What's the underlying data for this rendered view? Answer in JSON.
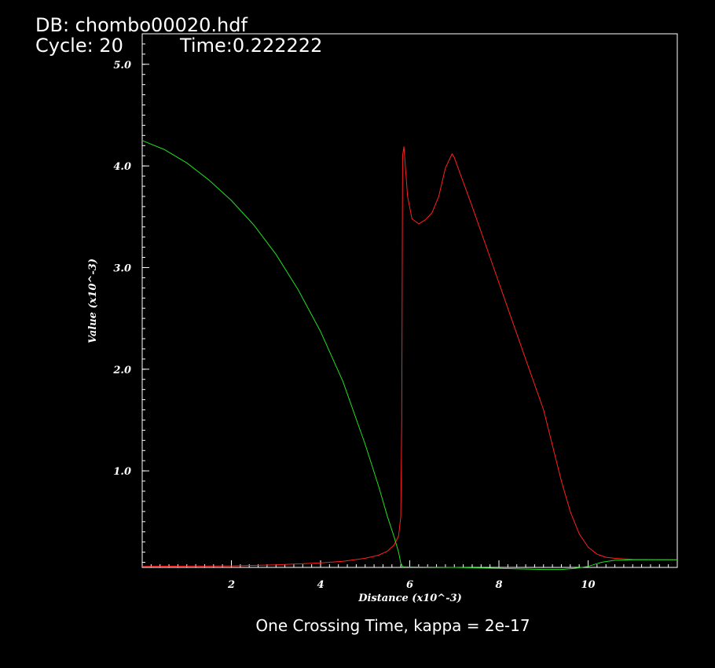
{
  "header": {
    "db": "DB: chombo00020.hdf",
    "cycle": "Cycle: 20",
    "time": "Time:0.222222"
  },
  "caption": "One Crossing Time, kappa = 2e-17",
  "chart_data": {
    "type": "line",
    "xlabel": "Distance (x10^-3)",
    "ylabel": "Value (x10^-3)",
    "xlim": [
      0,
      12
    ],
    "ylim": [
      0.05,
      5.3
    ],
    "x_ticks": [
      2,
      4,
      6,
      8,
      10
    ],
    "y_ticks": [
      1.0,
      2.0,
      3.0,
      4.0,
      5.0
    ],
    "x_tick_labels": [
      "2",
      "4",
      "6",
      "8",
      "10"
    ],
    "y_tick_labels": [
      "1.0",
      "2.0",
      "3.0",
      "4.0",
      "5.0"
    ],
    "grid": false,
    "series": [
      {
        "color": "#ff2020",
        "x": [
          0.0,
          1.0,
          2.0,
          3.0,
          4.0,
          4.5,
          5.0,
          5.3,
          5.5,
          5.65,
          5.75,
          5.8,
          5.82,
          5.84,
          5.87,
          5.95,
          6.05,
          6.2,
          6.35,
          6.5,
          6.65,
          6.8,
          6.95,
          7.0,
          7.4,
          7.8,
          8.2,
          8.6,
          9.0,
          9.2,
          9.4,
          9.6,
          9.8,
          10.0,
          10.2,
          10.4,
          10.6,
          11.0,
          12.0
        ],
        "y": [
          0.06,
          0.062,
          0.065,
          0.075,
          0.095,
          0.11,
          0.14,
          0.17,
          0.21,
          0.27,
          0.36,
          0.55,
          1.5,
          4.1,
          4.19,
          3.7,
          3.48,
          3.43,
          3.47,
          3.54,
          3.7,
          3.98,
          4.12,
          4.08,
          3.6,
          3.1,
          2.6,
          2.1,
          1.6,
          1.25,
          0.9,
          0.6,
          0.38,
          0.25,
          0.18,
          0.15,
          0.14,
          0.13,
          0.125
        ]
      },
      {
        "color": "#20e020",
        "x": [
          0.0,
          0.5,
          1.0,
          1.5,
          2.0,
          2.5,
          3.0,
          3.5,
          4.0,
          4.5,
          5.0,
          5.3,
          5.5,
          5.65,
          5.75,
          5.8,
          5.85,
          6.0,
          7.0,
          8.0,
          9.0,
          9.4,
          9.7,
          10.0,
          10.3,
          10.6,
          11.0,
          12.0
        ],
        "y": [
          4.25,
          4.16,
          4.03,
          3.86,
          3.66,
          3.42,
          3.13,
          2.78,
          2.37,
          1.88,
          1.26,
          0.85,
          0.55,
          0.35,
          0.2,
          0.09,
          0.055,
          0.055,
          0.05,
          0.04,
          0.03,
          0.03,
          0.04,
          0.06,
          0.1,
          0.12,
          0.125,
          0.125
        ]
      }
    ]
  }
}
